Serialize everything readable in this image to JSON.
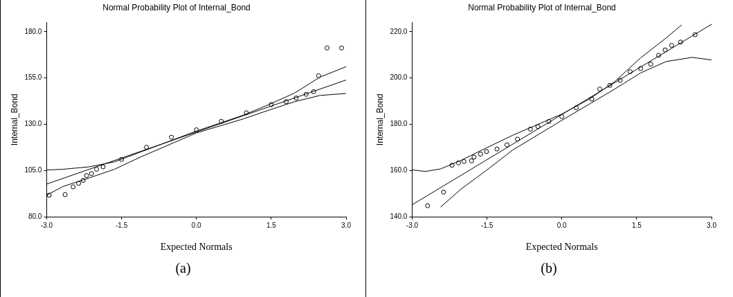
{
  "chart_data": [
    {
      "type": "scatter",
      "title": "Normal Probability Plot of Internal_Bond",
      "xlabel": "Expected Normals",
      "ylabel": "Internal_Bond",
      "annotations": [
        "(a)"
      ],
      "grid": false,
      "legend": false,
      "xlim": [
        -3,
        3
      ],
      "xticks": [
        {
          "value": -3,
          "label": "-3.0"
        },
        {
          "value": -1.5,
          "label": "-1.5"
        },
        {
          "value": 0,
          "label": "0.0"
        },
        {
          "value": 1.5,
          "label": "1.5"
        },
        {
          "value": 3,
          "label": "3.0"
        }
      ],
      "ylim": [
        80,
        185
      ],
      "yticks": [
        {
          "value": 80,
          "label": "80.0"
        },
        {
          "value": 105,
          "label": "105.0"
        },
        {
          "value": 130,
          "label": "130.0"
        },
        {
          "value": 155,
          "label": "155.0"
        },
        {
          "value": 180,
          "label": "180.0"
        }
      ],
      "series": [
        {
          "type": "scatter",
          "marker": "circle",
          "color": "#000000",
          "x": [
            -2.95,
            -2.63,
            -2.47,
            -2.36,
            -2.27,
            -2.2,
            -2.1,
            -2.0,
            -1.87,
            -1.5,
            -1.0,
            -0.5,
            0,
            0.5,
            1.0,
            1.5,
            1.8,
            2.0,
            2.2,
            2.35,
            2.45,
            2.62,
            2.91
          ],
          "values": [
            91.7,
            92.0,
            96.2,
            98.1,
            99.7,
            102.3,
            103.4,
            105.7,
            107,
            111,
            117.6,
            123,
            127,
            131.6,
            136.2,
            140.6,
            142.2,
            144.2,
            146.2,
            147.6,
            156.2,
            171.2,
            171.2
          ]
        },
        {
          "type": "line",
          "marker": "none",
          "color": "#000000",
          "x": [
            -3,
            3
          ],
          "values": [
            97.7,
            153.9
          ]
        },
        {
          "type": "line",
          "marker": "none",
          "color": "#000000",
          "x": [
            -3,
            -2.67,
            -2.15,
            -1.64,
            -1.12,
            0,
            0.94,
            1.45,
            1.97,
            2.48,
            3
          ],
          "values": [
            105.3,
            105.7,
            107,
            109.7,
            115,
            126.3,
            134.9,
            140.6,
            146.9,
            155.5,
            161.1
          ]
        },
        {
          "type": "line",
          "marker": "none",
          "color": "#000000",
          "x": [
            -3,
            -2.67,
            -2.15,
            -1.64,
            -1.12,
            0,
            0.94,
            1.45,
            1.97,
            2.48,
            3
          ],
          "values": [
            91.7,
            96.4,
            101,
            105.7,
            112.3,
            125.3,
            132.9,
            137.6,
            142.2,
            145.6,
            146.6
          ]
        }
      ]
    },
    {
      "type": "scatter",
      "title": "Normal Probability Plot of Internal_Bond",
      "xlabel": "Expected Normals",
      "ylabel": "Internal_Bond",
      "annotations": [
        "(b)"
      ],
      "grid": false,
      "legend": false,
      "xlim": [
        -3,
        3
      ],
      "xticks": [
        {
          "value": -3,
          "label": "-3.0"
        },
        {
          "value": -1.5,
          "label": "-1.5"
        },
        {
          "value": 0,
          "label": "0.0"
        },
        {
          "value": 1.5,
          "label": "1.5"
        },
        {
          "value": 3,
          "label": "3.0"
        }
      ],
      "ylim": [
        140,
        224
      ],
      "yticks": [
        {
          "value": 140,
          "label": "140.0"
        },
        {
          "value": 160,
          "label": "160.0"
        },
        {
          "value": 180,
          "label": "180.0"
        },
        {
          "value": 200,
          "label": "200.0"
        },
        {
          "value": 220,
          "label": "220.0"
        }
      ],
      "series": [
        {
          "type": "scatter",
          "marker": "circle",
          "color": "#000000",
          "x": [
            -2.69,
            -2.37,
            -2.2,
            -2.07,
            -1.96,
            -1.81,
            -1.76,
            -1.63,
            -1.51,
            -1.3,
            -1.1,
            -0.89,
            -0.63,
            -0.48,
            -0.26,
            0,
            0.29,
            0.6,
            0.76,
            0.96,
            1.17,
            1.37,
            1.58,
            1.78,
            1.94,
            2.07,
            2.2,
            2.38,
            2.67
          ],
          "values": [
            144.8,
            150.7,
            162.3,
            163.3,
            163.9,
            164.2,
            165.8,
            167.1,
            168.2,
            169.3,
            171.1,
            173.6,
            177.9,
            179,
            181.2,
            183.3,
            187.1,
            190.9,
            195.2,
            196.8,
            199,
            202.7,
            204.1,
            206,
            209.8,
            212.1,
            214.1,
            215.5,
            218.7
          ]
        },
        {
          "type": "line",
          "marker": "none",
          "color": "#000000",
          "x": [
            -3,
            3
          ],
          "values": [
            145.2,
            223.2
          ]
        },
        {
          "type": "line",
          "marker": "none",
          "color": "#000000",
          "x": [
            -3,
            -2.74,
            -2.43,
            -2.02,
            -1.51,
            -0.99,
            0,
            0.55,
            1.06,
            1.58,
            2.09,
            2.4
          ],
          "values": [
            160.3,
            159.6,
            160.7,
            164.4,
            169.8,
            175.2,
            184.4,
            190.9,
            198.4,
            208.7,
            217.3,
            222.9
          ]
        },
        {
          "type": "line",
          "marker": "none",
          "color": "#000000",
          "x": [
            -2.43,
            -2.02,
            -1.51,
            -0.99,
            0,
            0.55,
            1.06,
            1.58,
            2.09,
            2.61,
            3
          ],
          "values": [
            144.2,
            152,
            160.1,
            168.8,
            181.7,
            188.7,
            195.2,
            202.2,
            207.1,
            208.9,
            207.8
          ]
        }
      ]
    }
  ]
}
